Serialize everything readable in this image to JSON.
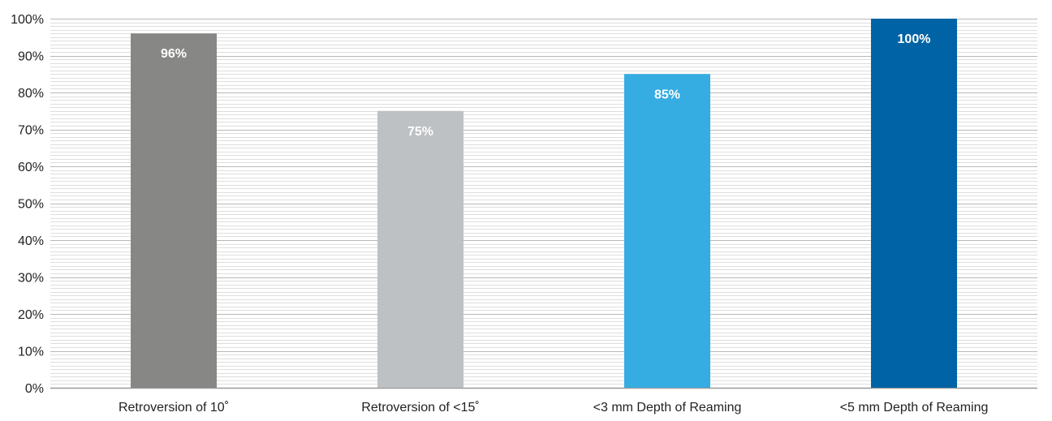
{
  "chart_data": {
    "type": "bar",
    "categories": [
      "Retroversion of 10˚",
      "Retroversion of <15˚",
      "<3 mm Depth of Reaming",
      "<5 mm Depth of Reaming"
    ],
    "values": [
      96,
      75,
      85,
      100
    ],
    "value_labels": [
      "96%",
      "75%",
      "85%",
      "100%"
    ],
    "bar_colors": [
      "#878786",
      "#bdc1c3",
      "#35ace2",
      "#0063a6"
    ],
    "ylim": [
      0,
      100
    ],
    "yticks": [
      0,
      10,
      20,
      30,
      40,
      50,
      60,
      70,
      80,
      90,
      100
    ],
    "ytick_labels": [
      "0%",
      "10%",
      "20%",
      "30%",
      "40%",
      "50%",
      "60%",
      "70%",
      "80%",
      "90%",
      "100%"
    ],
    "minor_grid_step": 1,
    "title": "",
    "xlabel": "",
    "ylabel": "",
    "grid": true,
    "legend": "none"
  }
}
